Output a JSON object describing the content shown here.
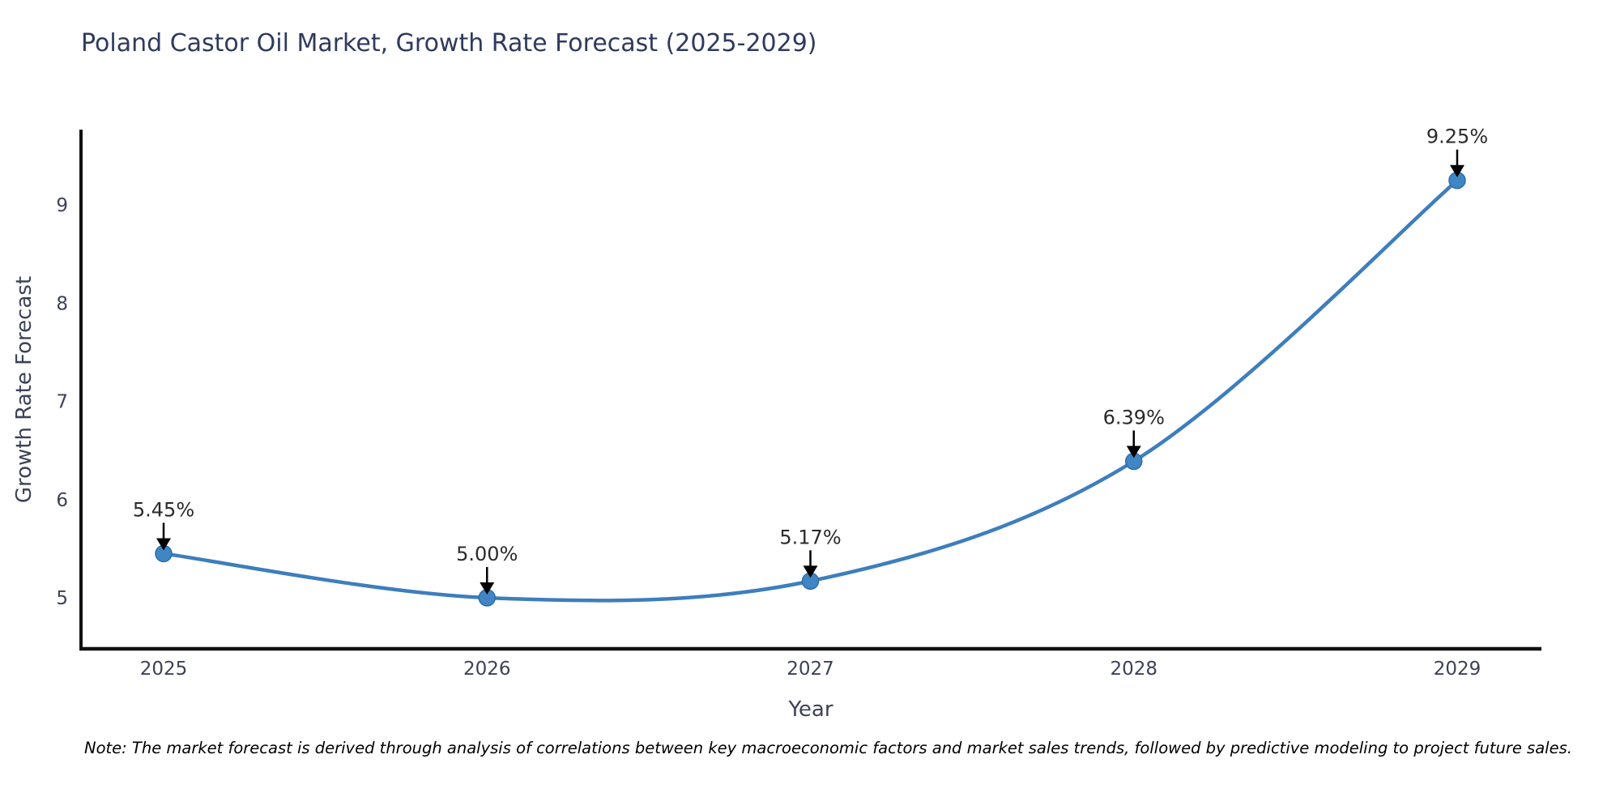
{
  "page": {
    "background": "#ffffff"
  },
  "chart_data": {
    "type": "line",
    "title": "Poland Castor Oil Market, Growth Rate Forecast (2025-2029)",
    "xlabel": "Year",
    "ylabel": "Growth Rate Forecast",
    "categories": [
      "2025",
      "2026",
      "2027",
      "2028",
      "2029"
    ],
    "values": [
      5.45,
      5.0,
      5.17,
      6.39,
      9.25
    ],
    "point_labels": [
      "5.45%",
      "5.00%",
      "5.17%",
      "6.39%",
      "9.25%"
    ],
    "yticks": [
      5,
      6,
      7,
      8,
      9
    ],
    "ylim": [
      4.45,
      9.8
    ],
    "grid": false,
    "legend": null,
    "smooth": true,
    "annotation_style": "text-above-with-down-arrow",
    "colors": {
      "line": "#3d7ebd",
      "marker_fill": "#4186c4",
      "marker_edge": "#2e6ca8",
      "axis": "#111111",
      "tick_label": "#3c4257",
      "title": "#2f3a5c",
      "annotation_text": "#2a2a2a",
      "arrow": "#000000"
    }
  },
  "note": "Note: The market forecast is derived through analysis of correlations between key macroeconomic factors and market sales trends, followed by predictive modeling to project future sales."
}
